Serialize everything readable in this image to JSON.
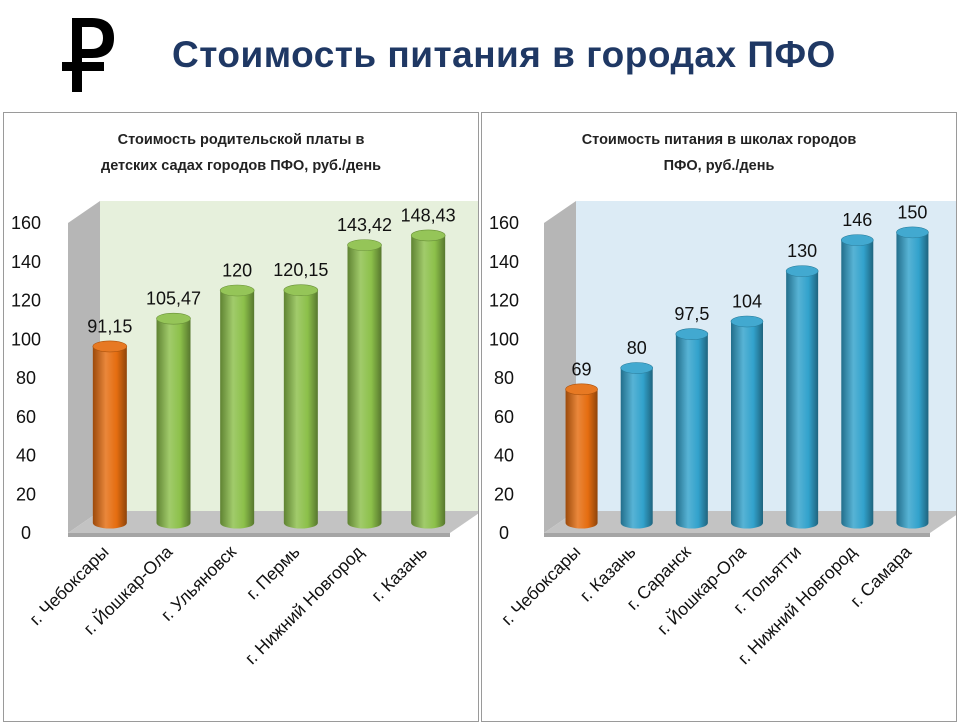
{
  "page": {
    "title": "Стоимость питания в городах ПФО",
    "logo_icon": "ruble-sign-icon"
  },
  "colors": {
    "title": "#1f3864",
    "highlight_bar": "#e56d10",
    "left_bars": "#8cc04a",
    "right_bars": "#32a2cc",
    "left_wall": "#e6f0dc",
    "right_wall": "#dcebf5"
  },
  "chart_data": [
    {
      "type": "bar",
      "title_lines": [
        "Стоимость родительской платы в",
        "детских садах городов ПФО, руб./день"
      ],
      "title": "Стоимость родительской платы в детских садах городов ПФО, руб./день",
      "categories": [
        "г. Чебоксары",
        "г. Йошкар-Ола",
        "г. Ульяновск",
        "г. Пермь",
        "г. Нижний Новгород",
        "г. Казань"
      ],
      "values": [
        91.15,
        105.47,
        120,
        120.15,
        143.42,
        148.43
      ],
      "labels": [
        "91,15",
        "105,47",
        "120",
        "120,15",
        "143,42",
        "148,43"
      ],
      "highlight_index": 0,
      "yticks": [
        "0",
        "20",
        "40",
        "60",
        "80",
        "100",
        "120",
        "140",
        "160"
      ],
      "ylim": [
        0,
        160
      ],
      "xlabel": "",
      "ylabel": "",
      "style": "3d-cylinder"
    },
    {
      "type": "bar",
      "title_lines": [
        "Стоимость питания в школах городов",
        "ПФО, руб./день"
      ],
      "title": "Стоимость питания в школах городов ПФО, руб./день",
      "categories": [
        "г. Чебоксары",
        "г. Казань",
        "г. Саранск",
        "г. Йошкар-Ола",
        "г. Тольятти",
        "г. Нижний Новгород",
        "г. Самара"
      ],
      "values": [
        69,
        80,
        97.5,
        104,
        130,
        146,
        150
      ],
      "labels": [
        "69",
        "80",
        "97,5",
        "104",
        "130",
        "146",
        "150"
      ],
      "highlight_index": 0,
      "yticks": [
        "0",
        "20",
        "40",
        "60",
        "80",
        "100",
        "120",
        "140",
        "160"
      ],
      "ylim": [
        0,
        160
      ],
      "xlabel": "",
      "ylabel": "",
      "style": "3d-cylinder"
    }
  ]
}
